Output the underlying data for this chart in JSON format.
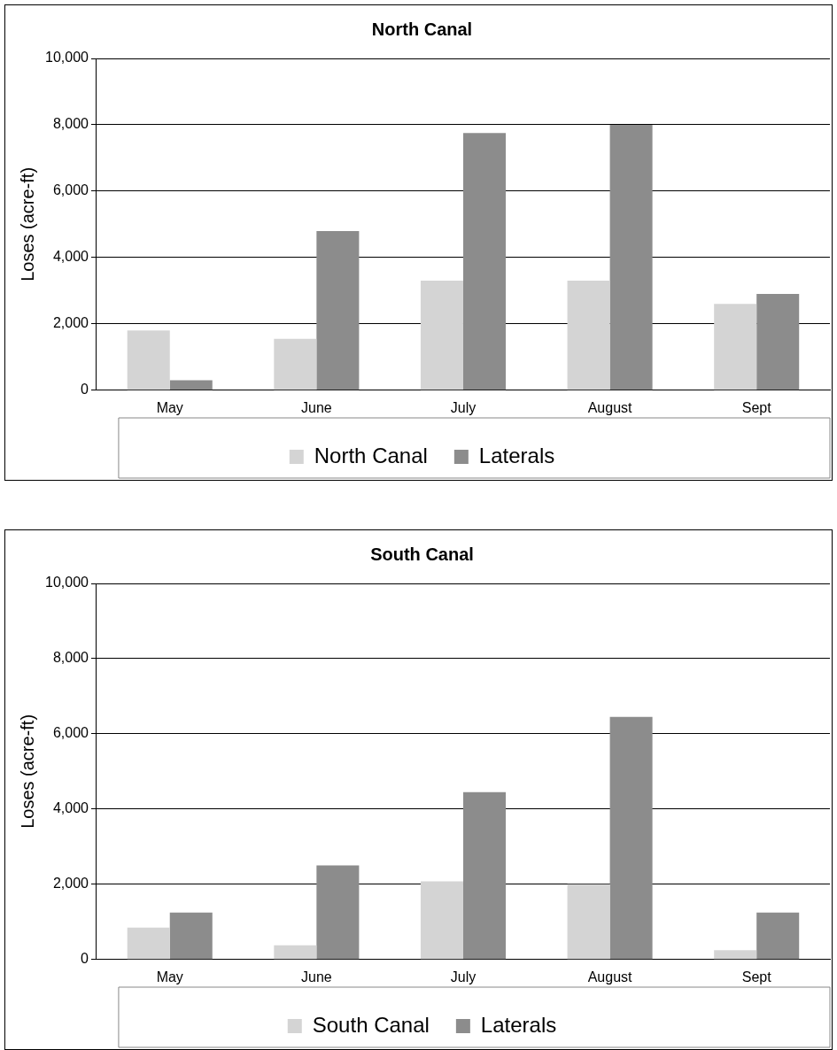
{
  "chart_data": [
    {
      "type": "bar",
      "title": "North Canal",
      "ylabel": "Loses (acre-ft)",
      "categories": [
        "May",
        "June",
        "July",
        "August",
        "Sept"
      ],
      "series": [
        {
          "name": "North Canal",
          "color": "#d4d4d4",
          "values": [
            1800,
            1550,
            3300,
            3300,
            2600
          ]
        },
        {
          "name": "Laterals",
          "color": "#8c8c8c",
          "values": [
            300,
            4800,
            7750,
            8000,
            2900
          ]
        }
      ],
      "ylim": [
        0,
        10000
      ],
      "yticks": [
        {
          "value": 0,
          "label": "0"
        },
        {
          "value": 2000,
          "label": "2,000"
        },
        {
          "value": 4000,
          "label": "4,000"
        },
        {
          "value": 6000,
          "label": "6,000"
        },
        {
          "value": 8000,
          "label": "8,000"
        },
        {
          "value": 10000,
          "label": "10,000"
        }
      ],
      "grid": "y",
      "legend": "bottom"
    },
    {
      "type": "bar",
      "title": "South Canal",
      "ylabel": "Loses (acre-ft)",
      "categories": [
        "May",
        "June",
        "July",
        "August",
        "Sept"
      ],
      "series": [
        {
          "name": "South Canal",
          "color": "#d4d4d4",
          "values": [
            850,
            380,
            2080,
            2000,
            250
          ]
        },
        {
          "name": "Laterals",
          "color": "#8c8c8c",
          "values": [
            1250,
            2500,
            4450,
            6450,
            1250
          ]
        }
      ],
      "ylim": [
        0,
        10000
      ],
      "yticks": [
        {
          "value": 0,
          "label": "0"
        },
        {
          "value": 2000,
          "label": "2,000"
        },
        {
          "value": 4000,
          "label": "4,000"
        },
        {
          "value": 6000,
          "label": "6,000"
        },
        {
          "value": 8000,
          "label": "8,000"
        },
        {
          "value": 10000,
          "label": "10,000"
        }
      ],
      "grid": "y",
      "legend": "bottom"
    }
  ]
}
